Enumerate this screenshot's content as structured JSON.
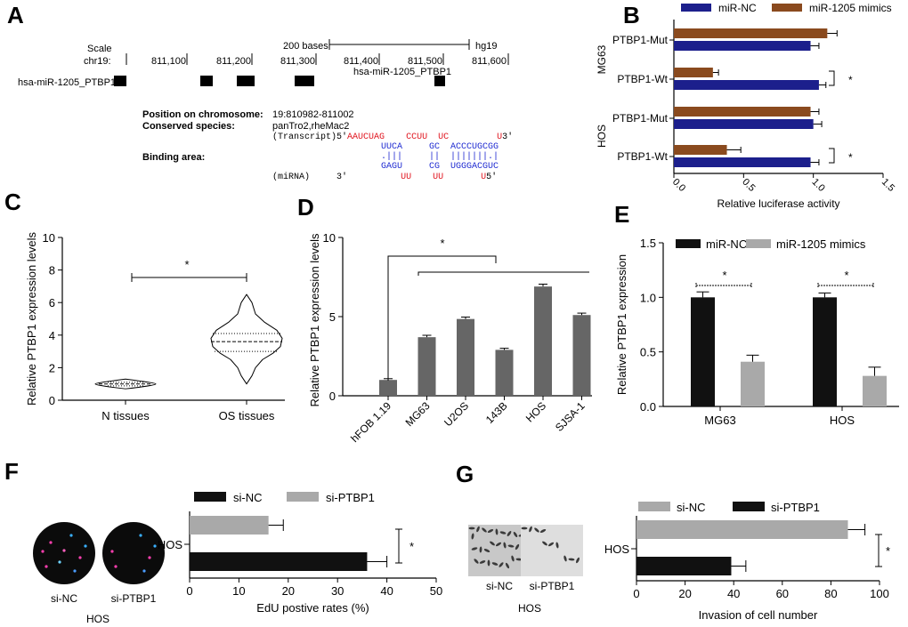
{
  "panel_letters": {
    "a": "A",
    "b": "B",
    "c": "C",
    "d": "D",
    "e": "E",
    "f": "F",
    "g": "G"
  },
  "genome": {
    "scale_label": "Scale",
    "chrom_label": "chr19:",
    "scale_text": "200 bases",
    "assembly": "hg19",
    "positions": [
      "811,100",
      "811,200",
      "811,300",
      "811,400",
      "811,500",
      "811,600"
    ],
    "track_name": "hsa-miR-1205_PTBP1",
    "track_top_label": "hsa-miR-1205_PTBP1",
    "position_label": "Position on chromosome:",
    "position_value": "19:810982-811002",
    "species_label": "Conserved species:",
    "species_value": "panTro2,rheMac2",
    "binding_label": "Binding area:",
    "transcript_label": "(Transcript)",
    "transcript_prefix": "5'",
    "transcript_red1": "AAUCUAG",
    "transcript_red2": "CCUU",
    "transcript_red3": "UC",
    "transcript_red4": "U",
    "transcript_suffix": "3'",
    "pair_top": "UUCA     GC  ACCCUGCGG",
    "pair_mid": ".|||     ||  |||||||.|",
    "pair_bot": "GAGU     CG  UGGGACGUC",
    "mirna_label": "(miRNA)",
    "mirna_prefix": "3'",
    "mirna_red1": "UU",
    "mirna_red2": "UU",
    "mirna_red3": "U",
    "mirna_suffix": "5'"
  },
  "colors": {
    "navy": "#1c1f8c",
    "brown": "#8a4a1e",
    "dark_gray": "#666666",
    "black": "#111111",
    "light_gray": "#a9a9a9"
  },
  "chart_data": [
    {
      "panel": "B",
      "type": "bar",
      "orientation": "horizontal",
      "legend": [
        "miR-NC",
        "miR-1205 mimics"
      ],
      "group_labels": [
        "MG63",
        "HOS"
      ],
      "categories": [
        "PTBP1-Mut",
        "PTBP1-Wt",
        "PTBP1-Mut",
        "PTBP1-Wt"
      ],
      "series": [
        {
          "name": "miR-NC",
          "values": [
            0.98,
            1.04,
            1.0,
            0.98
          ],
          "errors": [
            0.06,
            0.05,
            0.06,
            0.06
          ]
        },
        {
          "name": "miR-1205 mimics",
          "values": [
            1.1,
            0.28,
            0.98,
            0.38
          ],
          "errors": [
            0.07,
            0.04,
            0.06,
            0.1
          ]
        }
      ],
      "xlabel": "Relative luciferase activity",
      "xlim": [
        0,
        1.5
      ],
      "ticks": [
        "0.0",
        "0.5",
        "1.0",
        "1.5"
      ],
      "significance": "*"
    },
    {
      "panel": "C",
      "type": "violin",
      "categories": [
        "N tissues",
        "OS tissues"
      ],
      "medians": [
        1.0,
        3.6
      ],
      "quartiles": [
        [
          0.88,
          1.1
        ],
        [
          3.0,
          4.1
        ]
      ],
      "ranges": [
        [
          0.7,
          1.3
        ],
        [
          1.0,
          6.5
        ]
      ],
      "ylabel": "Relative PTBP1 expression levels",
      "ylim": [
        0,
        10
      ],
      "ticks": [
        "0",
        "2",
        "4",
        "6",
        "8",
        "10"
      ],
      "significance": "*"
    },
    {
      "panel": "D",
      "type": "bar",
      "categories": [
        "hFOB 1.19",
        "MG63",
        "U2OS",
        "143B",
        "HOS",
        "SJSA-1"
      ],
      "values": [
        1.0,
        3.7,
        4.85,
        2.9,
        6.9,
        5.1
      ],
      "errors": [
        0.08,
        0.12,
        0.12,
        0.1,
        0.15,
        0.12
      ],
      "ylabel": "Relative PTBP1 expression levels",
      "ylim": [
        0,
        10
      ],
      "ticks": [
        "0",
        "5",
        "10"
      ],
      "significance": "*"
    },
    {
      "panel": "E",
      "type": "bar",
      "categories": [
        "MG63",
        "HOS"
      ],
      "series": [
        {
          "name": "miR-NC",
          "values": [
            1.0,
            1.0
          ],
          "errors": [
            0.05,
            0.04
          ]
        },
        {
          "name": "miR-1205 mimics",
          "values": [
            0.41,
            0.28
          ],
          "errors": [
            0.06,
            0.08
          ]
        }
      ],
      "ylabel": "Relative PTBP1 expression",
      "ylim": [
        0,
        1.5
      ],
      "ticks": [
        "0.0",
        "0.5",
        "1.0",
        "1.5"
      ],
      "significance": "*"
    },
    {
      "panel": "F",
      "type": "bar",
      "orientation": "horizontal",
      "categories": [
        "HOS"
      ],
      "series": [
        {
          "name": "si-NC",
          "values": [
            36
          ],
          "errors": [
            4
          ]
        },
        {
          "name": "si-PTBP1",
          "values": [
            16
          ],
          "errors": [
            3
          ]
        }
      ],
      "xlabel": "EdU postive rates (%)",
      "xlim": [
        0,
        50
      ],
      "ticks": [
        "0",
        "10",
        "20",
        "30",
        "40",
        "50"
      ],
      "image_labels": [
        "si-NC",
        "si-PTBP1"
      ],
      "caption": "HOS",
      "significance": "*"
    },
    {
      "panel": "G",
      "type": "bar",
      "orientation": "horizontal",
      "categories": [
        "HOS"
      ],
      "series": [
        {
          "name": "si-NC",
          "values": [
            87
          ],
          "errors": [
            7
          ]
        },
        {
          "name": "si-PTBP1",
          "values": [
            39
          ],
          "errors": [
            6
          ]
        }
      ],
      "xlabel": "Invasion of cell number",
      "xlim": [
        0,
        100
      ],
      "ticks": [
        "0",
        "20",
        "40",
        "60",
        "80",
        "100"
      ],
      "image_labels": [
        "si-NC",
        "si-PTBP1"
      ],
      "caption": "HOS",
      "significance": "*"
    }
  ]
}
